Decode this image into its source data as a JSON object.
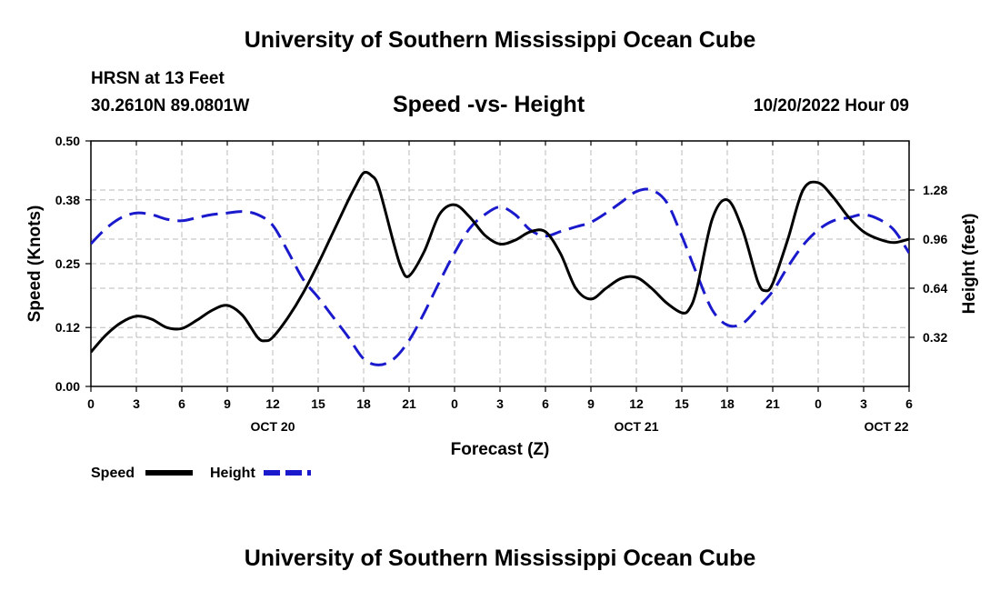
{
  "header": {
    "title": "University of Southern Mississippi Ocean Cube",
    "station": "HRSN at 13 Feet",
    "coords": "30.2610N  89.0801W",
    "subtitle": "Speed -vs- Height",
    "datetime": "10/20/2022 Hour 09"
  },
  "footer": {
    "title": "University of Southern Mississippi Ocean Cube"
  },
  "colors": {
    "speed": "#000000",
    "height": "#1a1acc",
    "grid": "#bbbbbb"
  },
  "chart_data": {
    "type": "line",
    "xlabel": "Forecast (Z)",
    "ylabel_left": "Speed (Knots)",
    "ylabel_right": "Height (feet)",
    "x_range_hours": [
      0,
      54
    ],
    "x_ticks": [
      {
        "hour": 0,
        "label": "0"
      },
      {
        "hour": 3,
        "label": "3"
      },
      {
        "hour": 6,
        "label": "6"
      },
      {
        "hour": 9,
        "label": "9"
      },
      {
        "hour": 12,
        "label": "12"
      },
      {
        "hour": 15,
        "label": "15"
      },
      {
        "hour": 18,
        "label": "18"
      },
      {
        "hour": 21,
        "label": "21"
      },
      {
        "hour": 24,
        "label": "0"
      },
      {
        "hour": 27,
        "label": "3"
      },
      {
        "hour": 30,
        "label": "6"
      },
      {
        "hour": 33,
        "label": "9"
      },
      {
        "hour": 36,
        "label": "12"
      },
      {
        "hour": 39,
        "label": "15"
      },
      {
        "hour": 42,
        "label": "18"
      },
      {
        "hour": 45,
        "label": "21"
      },
      {
        "hour": 48,
        "label": "0"
      },
      {
        "hour": 51,
        "label": "3"
      },
      {
        "hour": 54,
        "label": "6"
      }
    ],
    "day_labels": [
      {
        "hour": 12,
        "label": "OCT 20"
      },
      {
        "hour": 36,
        "label": "OCT 21"
      },
      {
        "hour": 52.5,
        "label": "OCT 22"
      }
    ],
    "left_axis": {
      "range": [
        0,
        0.5
      ],
      "ticks": [
        "0.00",
        "0.12",
        "0.25",
        "0.38",
        "0.50"
      ]
    },
    "right_axis": {
      "range": [
        0,
        1.6
      ],
      "ticks": [
        "0.32",
        "0.64",
        "0.96",
        "1.28"
      ]
    },
    "series": [
      {
        "name": "Speed",
        "axis": "left",
        "x": [
          0,
          1,
          2,
          3,
          4,
          5,
          6,
          7,
          8,
          9,
          10,
          11,
          11.5,
          12,
          13,
          14,
          15,
          16,
          17,
          17.5,
          18,
          18.5,
          19,
          20,
          20.5,
          21,
          22,
          23,
          24,
          25,
          26,
          27,
          28,
          29,
          30,
          31,
          32,
          33,
          34,
          35,
          36,
          37,
          38,
          39,
          39.5,
          40,
          41,
          42,
          43,
          44,
          44.5,
          45,
          46,
          47,
          48,
          49,
          50,
          51,
          52,
          53,
          54
        ],
        "values": [
          0.07,
          0.105,
          0.13,
          0.143,
          0.137,
          0.12,
          0.118,
          0.135,
          0.155,
          0.165,
          0.145,
          0.1,
          0.093,
          0.1,
          0.14,
          0.19,
          0.25,
          0.315,
          0.38,
          0.41,
          0.435,
          0.43,
          0.405,
          0.29,
          0.24,
          0.225,
          0.275,
          0.35,
          0.37,
          0.345,
          0.308,
          0.29,
          0.298,
          0.315,
          0.315,
          0.27,
          0.2,
          0.178,
          0.2,
          0.22,
          0.222,
          0.2,
          0.17,
          0.15,
          0.158,
          0.2,
          0.34,
          0.38,
          0.32,
          0.215,
          0.195,
          0.21,
          0.3,
          0.4,
          0.415,
          0.385,
          0.345,
          0.315,
          0.3,
          0.293,
          0.3
        ]
      },
      {
        "name": "Height",
        "axis": "right",
        "x": [
          0,
          1,
          2,
          3,
          4,
          5,
          6,
          7,
          8,
          9,
          10,
          11,
          12,
          13,
          14,
          15,
          16,
          17,
          18,
          19,
          20,
          21,
          22,
          23,
          24,
          25,
          26,
          27,
          28,
          29,
          30,
          31,
          32,
          33,
          34,
          35,
          36,
          37,
          38,
          39,
          40,
          41,
          42,
          43,
          44,
          45,
          46,
          47,
          48,
          49,
          50,
          51,
          52,
          53,
          54
        ],
        "values": [
          0.93,
          1.03,
          1.1,
          1.13,
          1.12,
          1.09,
          1.08,
          1.1,
          1.12,
          1.13,
          1.14,
          1.12,
          1.05,
          0.88,
          0.7,
          0.58,
          0.45,
          0.32,
          0.18,
          0.14,
          0.18,
          0.3,
          0.48,
          0.68,
          0.87,
          1.03,
          1.12,
          1.17,
          1.12,
          1.02,
          0.98,
          1.01,
          1.04,
          1.07,
          1.13,
          1.2,
          1.27,
          1.28,
          1.2,
          0.98,
          0.73,
          0.5,
          0.4,
          0.41,
          0.51,
          0.62,
          0.78,
          0.92,
          1.02,
          1.08,
          1.1,
          1.12,
          1.09,
          1.02,
          0.87
        ]
      }
    ],
    "legend": [
      {
        "label": "Speed",
        "color": "#000000",
        "style": "solid"
      },
      {
        "label": "Height",
        "color": "#1a1acc",
        "style": "dashed"
      }
    ]
  }
}
